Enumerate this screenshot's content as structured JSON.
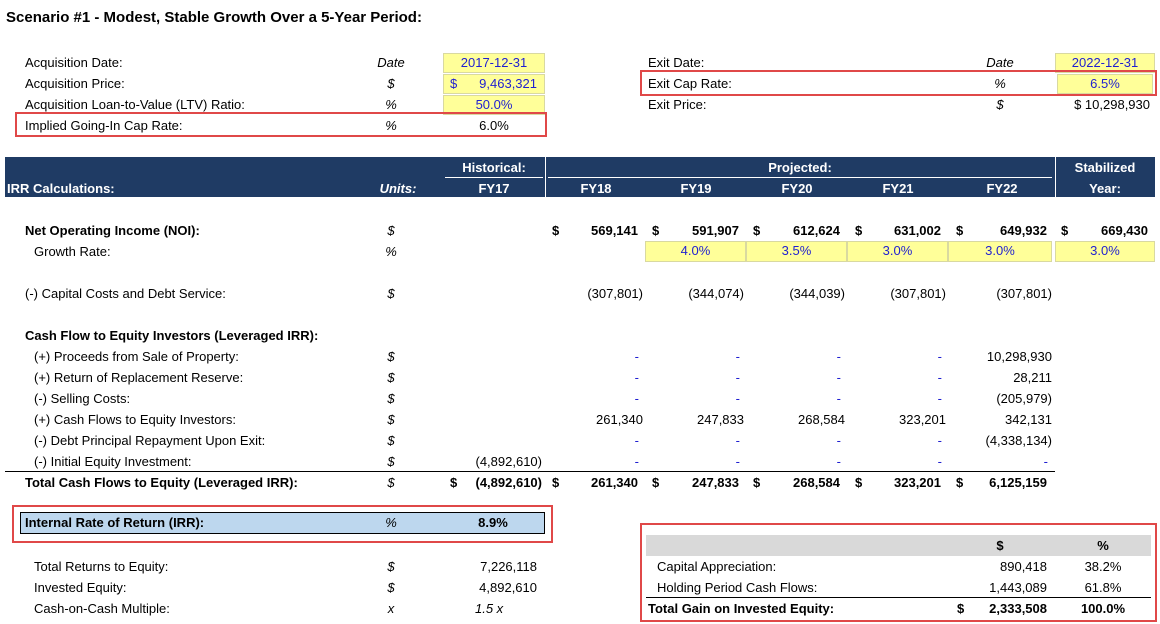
{
  "title": "Scenario #1 - Modest, Stable Growth Over a 5-Year Period:",
  "acq": [
    {
      "label": "Acquisition Date:",
      "unit": "Date",
      "value": "2017-12-31"
    },
    {
      "label": "Acquisition Price:",
      "unit": "$",
      "value_sym": "$",
      "value": "9,463,321"
    },
    {
      "label": "Acquisition Loan-to-Value (LTV) Ratio:",
      "unit": "%",
      "value": "50.0%"
    },
    {
      "label": "Implied Going-In Cap Rate:",
      "unit": "%",
      "value": "6.0%"
    }
  ],
  "exit": [
    {
      "label": "Exit Date:",
      "unit": "Date",
      "value": "2022-12-31"
    },
    {
      "label": "Exit Cap Rate:",
      "unit": "%",
      "value": "6.5%"
    },
    {
      "label": "Exit Price:",
      "unit": "$",
      "value": "$ 10,298,930"
    }
  ],
  "header": {
    "historical": "Historical:",
    "projected": "Projected:",
    "stabilized": "Stabilized",
    "year": "Year:",
    "irr_calc": "IRR Calculations:",
    "units": "Units:",
    "fy": [
      "FY17",
      "FY18",
      "FY19",
      "FY20",
      "FY21",
      "FY22"
    ]
  },
  "noi": {
    "label": "Net Operating Income (NOI):",
    "unit": "$",
    "values": [
      "569,141",
      "591,907",
      "612,624",
      "631,002",
      "649,932",
      "669,430"
    ]
  },
  "growth": {
    "label": "Growth Rate:",
    "unit": "%",
    "values": [
      "4.0%",
      "3.5%",
      "3.0%",
      "3.0%",
      "3.0%"
    ]
  },
  "capex": {
    "label": "(-) Capital Costs and Debt Service:",
    "unit": "$",
    "values": [
      "(307,801)",
      "(344,074)",
      "(344,039)",
      "(307,801)",
      "(307,801)"
    ]
  },
  "cf_title": "Cash Flow to Equity Investors (Leveraged IRR):",
  "cf_rows": [
    {
      "label": "(+) Proceeds from Sale of Property:",
      "unit": "$",
      "fy17": "",
      "values": [
        "-",
        "-",
        "-",
        "-",
        "10,298,930"
      ]
    },
    {
      "label": "(+) Return of Replacement Reserve:",
      "unit": "$",
      "fy17": "",
      "values": [
        "-",
        "-",
        "-",
        "-",
        "28,211"
      ]
    },
    {
      "label": "(-) Selling Costs:",
      "unit": "$",
      "fy17": "",
      "values": [
        "-",
        "-",
        "-",
        "-",
        "(205,979)"
      ]
    },
    {
      "label": "(+) Cash Flows to Equity Investors:",
      "unit": "$",
      "fy17": "",
      "values": [
        "261,340",
        "247,833",
        "268,584",
        "323,201",
        "342,131"
      ]
    },
    {
      "label": "(-) Debt Principal Repayment Upon Exit:",
      "unit": "$",
      "fy17": "",
      "values": [
        "-",
        "-",
        "-",
        "-",
        "(4,338,134)"
      ]
    },
    {
      "label": "(-) Initial Equity Investment:",
      "unit": "$",
      "fy17": "(4,892,610)",
      "values": [
        "-",
        "-",
        "-",
        "-",
        "-"
      ]
    }
  ],
  "total": {
    "label": "Total Cash Flows to Equity (Leveraged IRR):",
    "unit": "$",
    "fy17": "(4,892,610)",
    "values": [
      "261,340",
      "247,833",
      "268,584",
      "323,201",
      "6,125,159"
    ]
  },
  "irr": {
    "label": "Internal Rate of Return (IRR):",
    "unit": "%",
    "value": "8.9%"
  },
  "returns": [
    {
      "label": "Total Returns to Equity:",
      "unit": "$",
      "value": "7,226,118",
      "italic": false
    },
    {
      "label": "Invested Equity:",
      "unit": "$",
      "value": "4,892,610",
      "italic": false
    },
    {
      "label": "Cash-on-Cash Multiple:",
      "unit": "x",
      "value": "1.5 x",
      "italic": true
    }
  ],
  "gain": {
    "col1": "$",
    "col2": "%",
    "rows": [
      {
        "label": "Capital Appreciation:",
        "amount": "890,418",
        "pct": "38.2%"
      },
      {
        "label": "Holding Period Cash Flows:",
        "amount": "1,443,089",
        "pct": "61.8%"
      }
    ],
    "total": {
      "label": "Total Gain on Invested Equity:",
      "sym": "$",
      "amount": "2,333,508",
      "pct": "100.0%"
    }
  },
  "sym": "$"
}
